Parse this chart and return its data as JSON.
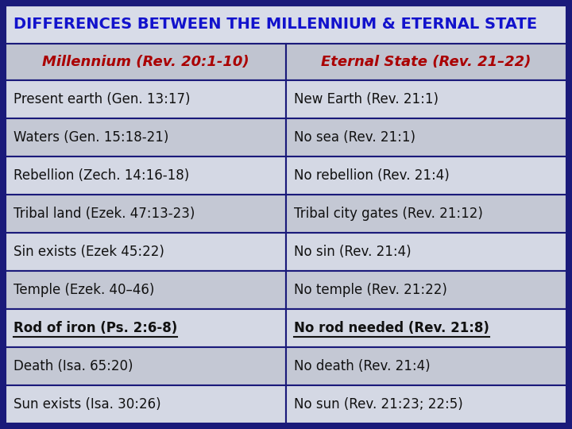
{
  "title": "DIFFERENCES BETWEEN THE MILLENNIUM & ETERNAL STATE",
  "title_color": "#1212cc",
  "title_bg": "#d8dce8",
  "header_col1": "Millennium (Rev. 20:1-10)",
  "header_col2": "Eternal State (Rev. 21–22)",
  "header_color": "#aa0000",
  "header_bg": "#c0c4d0",
  "rows": [
    [
      "Present earth (Gen. 13:17)",
      "New Earth (Rev. 21:1)"
    ],
    [
      "Waters (Gen. 15:18-21)",
      "No sea (Rev. 21:1)"
    ],
    [
      "Rebellion (Zech. 14:16-18)",
      "No rebellion (Rev. 21:4)"
    ],
    [
      "Tribal land (Ezek. 47:13-23)",
      "Tribal city gates (Rev. 21:12)"
    ],
    [
      "Sin exists (Ezek 45:22)",
      "No sin (Rev. 21:4)"
    ],
    [
      "Temple (Ezek. 40–46)",
      "No temple (Rev. 21:22)"
    ],
    [
      "Rod of iron (Ps. 2:6-8)",
      "No rod needed (Rev. 21:8)"
    ],
    [
      "Death (Isa. 65:20)",
      "No death (Rev. 21:4)"
    ],
    [
      "Sun exists (Isa. 30:26)",
      "No sun (Rev. 21:23; 22:5)"
    ]
  ],
  "bold_underline_row": 6,
  "row_bg_light": "#d4d8e4",
  "row_bg_dark": "#c4c8d4",
  "border_color": "#1a1a7a",
  "outer_bg": "#1a1a7a",
  "text_color": "#111111",
  "font_size_title": 14,
  "font_size_header": 13,
  "font_size_row": 12
}
